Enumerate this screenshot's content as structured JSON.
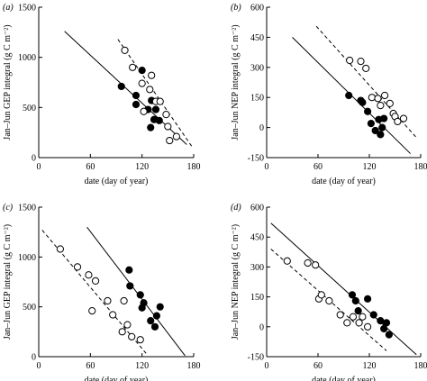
{
  "chart_data": [
    {
      "type": "scatter",
      "panel_label": "(a)",
      "xlabel": "date (day of year)",
      "ylabel": "Jan–Jun GEP integral (g C m⁻²)",
      "xlim": [
        0,
        180
      ],
      "ylim": [
        0,
        1500
      ],
      "xticks": [
        0,
        60,
        120,
        180
      ],
      "yticks": [
        0,
        500,
        1000,
        1500
      ],
      "grid": false,
      "series": [
        {
          "marker": "filled-circle",
          "points": [
            [
              96,
              710
            ],
            [
              113,
              620
            ],
            [
              113,
              530
            ],
            [
              120,
              870
            ],
            [
              127,
              480
            ],
            [
              130,
              300
            ],
            [
              131,
              570
            ],
            [
              134,
              380
            ],
            [
              136,
              480
            ],
            [
              140,
              370
            ]
          ]
        },
        {
          "marker": "open-circle",
          "points": [
            [
              100,
              1070
            ],
            [
              109,
              900
            ],
            [
              120,
              740
            ],
            [
              122,
              460
            ],
            [
              129,
              680
            ],
            [
              131,
              820
            ],
            [
              136,
              560
            ],
            [
              141,
              560
            ],
            [
              148,
              430
            ],
            [
              150,
              310
            ],
            [
              152,
              170
            ],
            [
              160,
              210
            ]
          ]
        }
      ],
      "fit_lines": [
        {
          "style": "solid",
          "x": [
            30,
            172
          ],
          "y": [
            1260,
            130
          ]
        },
        {
          "style": "dashed",
          "x": [
            92,
            178
          ],
          "y": [
            1180,
            110
          ]
        }
      ]
    },
    {
      "type": "scatter",
      "panel_label": "(b)",
      "xlabel": "date (day of year)",
      "ylabel": "Jan–Jun NEP integral (g C m⁻²)",
      "xlim": [
        0,
        180
      ],
      "ylim": [
        -150,
        600
      ],
      "xticks": [
        0,
        60,
        120,
        180
      ],
      "yticks": [
        -150,
        0,
        150,
        300,
        450,
        600
      ],
      "grid": false,
      "series": [
        {
          "marker": "filled-circle",
          "points": [
            [
              96,
              160
            ],
            [
              110,
              135
            ],
            [
              112,
              125
            ],
            [
              118,
              80
            ],
            [
              122,
              20
            ],
            [
              127,
              -15
            ],
            [
              131,
              40
            ],
            [
              133,
              -35
            ],
            [
              135,
              0
            ],
            [
              137,
              45
            ]
          ]
        },
        {
          "marker": "open-circle",
          "points": [
            [
              97,
              335
            ],
            [
              110,
              330
            ],
            [
              116,
              295
            ],
            [
              123,
              150
            ],
            [
              130,
              145
            ],
            [
              133,
              110
            ],
            [
              138,
              160
            ],
            [
              144,
              120
            ],
            [
              148,
              70
            ],
            [
              150,
              55
            ],
            [
              153,
              30
            ],
            [
              160,
              45
            ]
          ]
        }
      ],
      "fit_lines": [
        {
          "style": "solid",
          "x": [
            30,
            168
          ],
          "y": [
            450,
            -130
          ]
        },
        {
          "style": "dashed",
          "x": [
            58,
            175
          ],
          "y": [
            505,
            -50
          ]
        }
      ]
    },
    {
      "type": "scatter",
      "panel_label": "(c)",
      "xlabel": "date (day of year)",
      "ylabel": "Jan–Jun GEP integral (g C m⁻²)",
      "xlim": [
        0,
        180
      ],
      "ylim": [
        0,
        1500
      ],
      "xticks": [
        0,
        60,
        120,
        180
      ],
      "yticks": [
        0,
        500,
        1000,
        1500
      ],
      "grid": false,
      "series": [
        {
          "marker": "filled-circle",
          "points": [
            [
              105,
              870
            ],
            [
              106,
              710
            ],
            [
              118,
              620
            ],
            [
              120,
              490
            ],
            [
              122,
              540
            ],
            [
              130,
              360
            ],
            [
              135,
              300
            ],
            [
              137,
              410
            ],
            [
              141,
              500
            ]
          ]
        },
        {
          "marker": "open-circle",
          "points": [
            [
              25,
              1080
            ],
            [
              45,
              900
            ],
            [
              58,
              820
            ],
            [
              62,
              460
            ],
            [
              66,
              760
            ],
            [
              80,
              560
            ],
            [
              86,
              420
            ],
            [
              97,
              250
            ],
            [
              99,
              560
            ],
            [
              103,
              320
            ],
            [
              108,
              200
            ],
            [
              118,
              170
            ]
          ]
        }
      ],
      "fit_lines": [
        {
          "style": "solid",
          "x": [
            56,
            170
          ],
          "y": [
            1300,
            10
          ]
        },
        {
          "style": "dashed",
          "x": [
            4,
            126
          ],
          "y": [
            1270,
            20
          ]
        }
      ]
    },
    {
      "type": "scatter",
      "panel_label": "(d)",
      "xlabel": "date (day of year)",
      "ylabel": "Jan–Jun NEP integral (g C m⁻²)",
      "xlim": [
        0,
        180
      ],
      "ylim": [
        -150,
        600
      ],
      "xticks": [
        0,
        60,
        120,
        180
      ],
      "yticks": [
        -150,
        0,
        150,
        300,
        450,
        600
      ],
      "grid": false,
      "series": [
        {
          "marker": "filled-circle",
          "points": [
            [
              100,
              160
            ],
            [
              104,
              130
            ],
            [
              107,
              80
            ],
            [
              118,
              140
            ],
            [
              125,
              60
            ],
            [
              133,
              30
            ],
            [
              137,
              -10
            ],
            [
              140,
              20
            ],
            [
              143,
              -40
            ]
          ]
        },
        {
          "marker": "open-circle",
          "points": [
            [
              24,
              330
            ],
            [
              48,
              320
            ],
            [
              57,
              310
            ],
            [
              61,
              140
            ],
            [
              64,
              160
            ],
            [
              73,
              130
            ],
            [
              86,
              60
            ],
            [
              94,
              20
            ],
            [
              101,
              50
            ],
            [
              108,
              20
            ],
            [
              112,
              50
            ],
            [
              118,
              0
            ]
          ]
        }
      ],
      "fit_lines": [
        {
          "style": "solid",
          "x": [
            5,
            175
          ],
          "y": [
            520,
            -140
          ]
        },
        {
          "style": "dashed",
          "x": [
            5,
            140
          ],
          "y": [
            390,
            -120
          ]
        }
      ]
    }
  ]
}
